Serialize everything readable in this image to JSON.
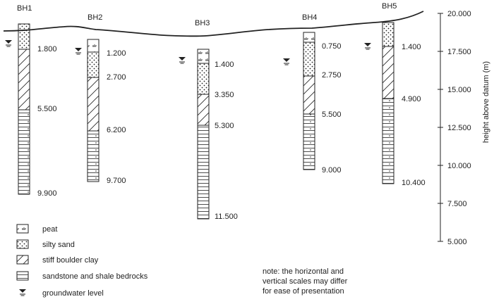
{
  "diagram": {
    "axis": {
      "title": "height above datum (m)",
      "ticks": [
        "20.000",
        "17.500",
        "15.000",
        "12.500",
        "10.000",
        "7.500",
        "5.000"
      ]
    },
    "boreholes": [
      {
        "name": "BH1",
        "depths": [
          "1.800",
          "5.500",
          "9.900"
        ]
      },
      {
        "name": "BH2",
        "depths": [
          "1.200",
          "2.700",
          "6.200",
          "9.700"
        ]
      },
      {
        "name": "BH3",
        "depths": [
          "1.400",
          "3.350",
          "5.300",
          "11.500"
        ]
      },
      {
        "name": "BH4",
        "depths": [
          "0.750",
          "2.750",
          "5.500",
          "9.000"
        ]
      },
      {
        "name": "BH5",
        "depths": [
          "1.400",
          "4.900",
          "10.400"
        ]
      }
    ],
    "legend": [
      {
        "symbol": "peat",
        "label": "peat"
      },
      {
        "symbol": "silty-sand",
        "label": "silty sand"
      },
      {
        "symbol": "boulder-clay",
        "label": "stiff boulder clay"
      },
      {
        "symbol": "bedrock",
        "label": "sandstone and shale bedrocks"
      },
      {
        "symbol": "groundwater",
        "label": "groundwater level"
      }
    ],
    "note": [
      "note: the horizontal and",
      "vertical scales may differ",
      "for ease of presentation"
    ]
  }
}
